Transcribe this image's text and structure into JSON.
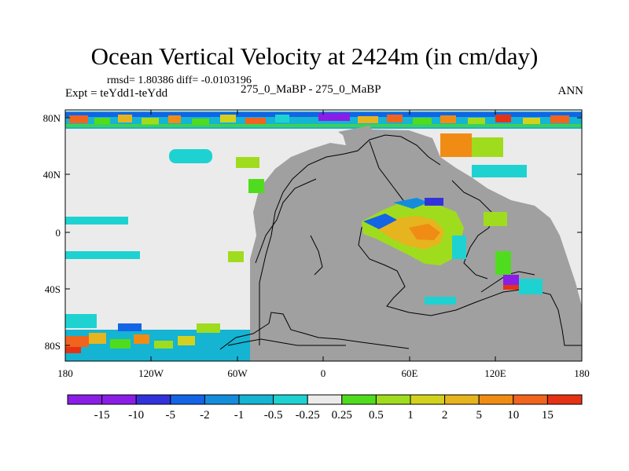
{
  "title": "Ocean Vertical Velocity at 2424m (in cm/day)",
  "stats": {
    "rmsd": "rmsd= 1.80386 diff= -0.0103196",
    "expt": "Expt = teYdd1-teYdd",
    "cases": "275_0_MaBP - 275_0_MaBP",
    "season": "ANN"
  },
  "axes": {
    "lat_ticks": [
      "80N",
      "40N",
      "0",
      "40S",
      "80S"
    ],
    "lon_ticks": [
      "180",
      "120W",
      "60W",
      "0",
      "60E",
      "120E",
      "180"
    ]
  },
  "colors": {
    "land": "#a0a0a0",
    "near_zero": "#ebebeb"
  },
  "colorbar": {
    "labels": [
      "-15",
      "-10",
      "-5",
      "-2",
      "-1",
      "-0.5",
      "-0.25",
      "0.25",
      "0.5",
      "1",
      "2",
      "5",
      "10",
      "15"
    ],
    "colors": [
      "#8a1ee6",
      "#3232dc",
      "#1464e6",
      "#148cdc",
      "#14b4d2",
      "#1ed2d2",
      "#ebebeb",
      "#50dc1e",
      "#a0dc1e",
      "#d2d21e",
      "#e6b41e",
      "#f08c14",
      "#f0641e",
      "#e63214"
    ]
  }
}
